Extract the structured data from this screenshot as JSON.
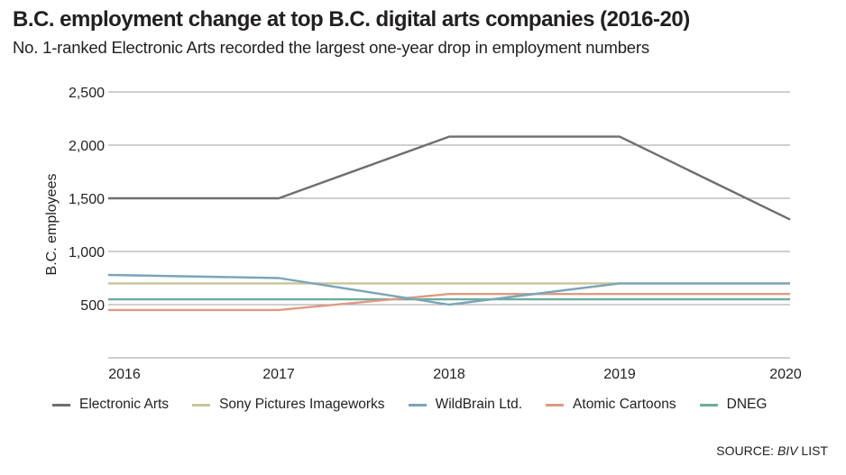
{
  "header": {
    "title": "B.C. employment change at top B.C. digital arts companies (2016-20)",
    "subtitle": "No. 1-ranked Electronic Arts recorded the largest one-year drop in employment numbers"
  },
  "source": {
    "prefix": "SOURCE:",
    "name": "BIV",
    "suffix": "LIST"
  },
  "chart_data": {
    "type": "line",
    "title": "B.C. employment change at top B.C. digital arts companies (2016-20)",
    "xlabel": "",
    "ylabel": "B.C. employees",
    "x": [
      "2016",
      "2017",
      "2018",
      "2019",
      "2020"
    ],
    "ylim": [
      0,
      2500
    ],
    "yticks": [
      500,
      1000,
      1500,
      2000,
      2500
    ],
    "ytick_labels": [
      "500",
      "1,000",
      "1,500",
      "2,000",
      "2,500"
    ],
    "grid": true,
    "legend_position": "bottom",
    "series": [
      {
        "name": "Electronic Arts",
        "color": "#6d6e70",
        "values": [
          1500,
          1500,
          2080,
          2080,
          1300
        ]
      },
      {
        "name": "Sony Pictures Imageworks",
        "color": "#c9c49a",
        "values": [
          700,
          700,
          700,
          700,
          700
        ]
      },
      {
        "name": "WildBrain Ltd.",
        "color": "#7aa5b6",
        "values": [
          780,
          750,
          500,
          700,
          700
        ]
      },
      {
        "name": "Atomic Cartoons",
        "color": "#de9a82",
        "values": [
          450,
          450,
          600,
          600,
          600
        ]
      },
      {
        "name": "DNEG",
        "color": "#6bab9c",
        "values": [
          550,
          550,
          550,
          550,
          550
        ]
      }
    ]
  }
}
